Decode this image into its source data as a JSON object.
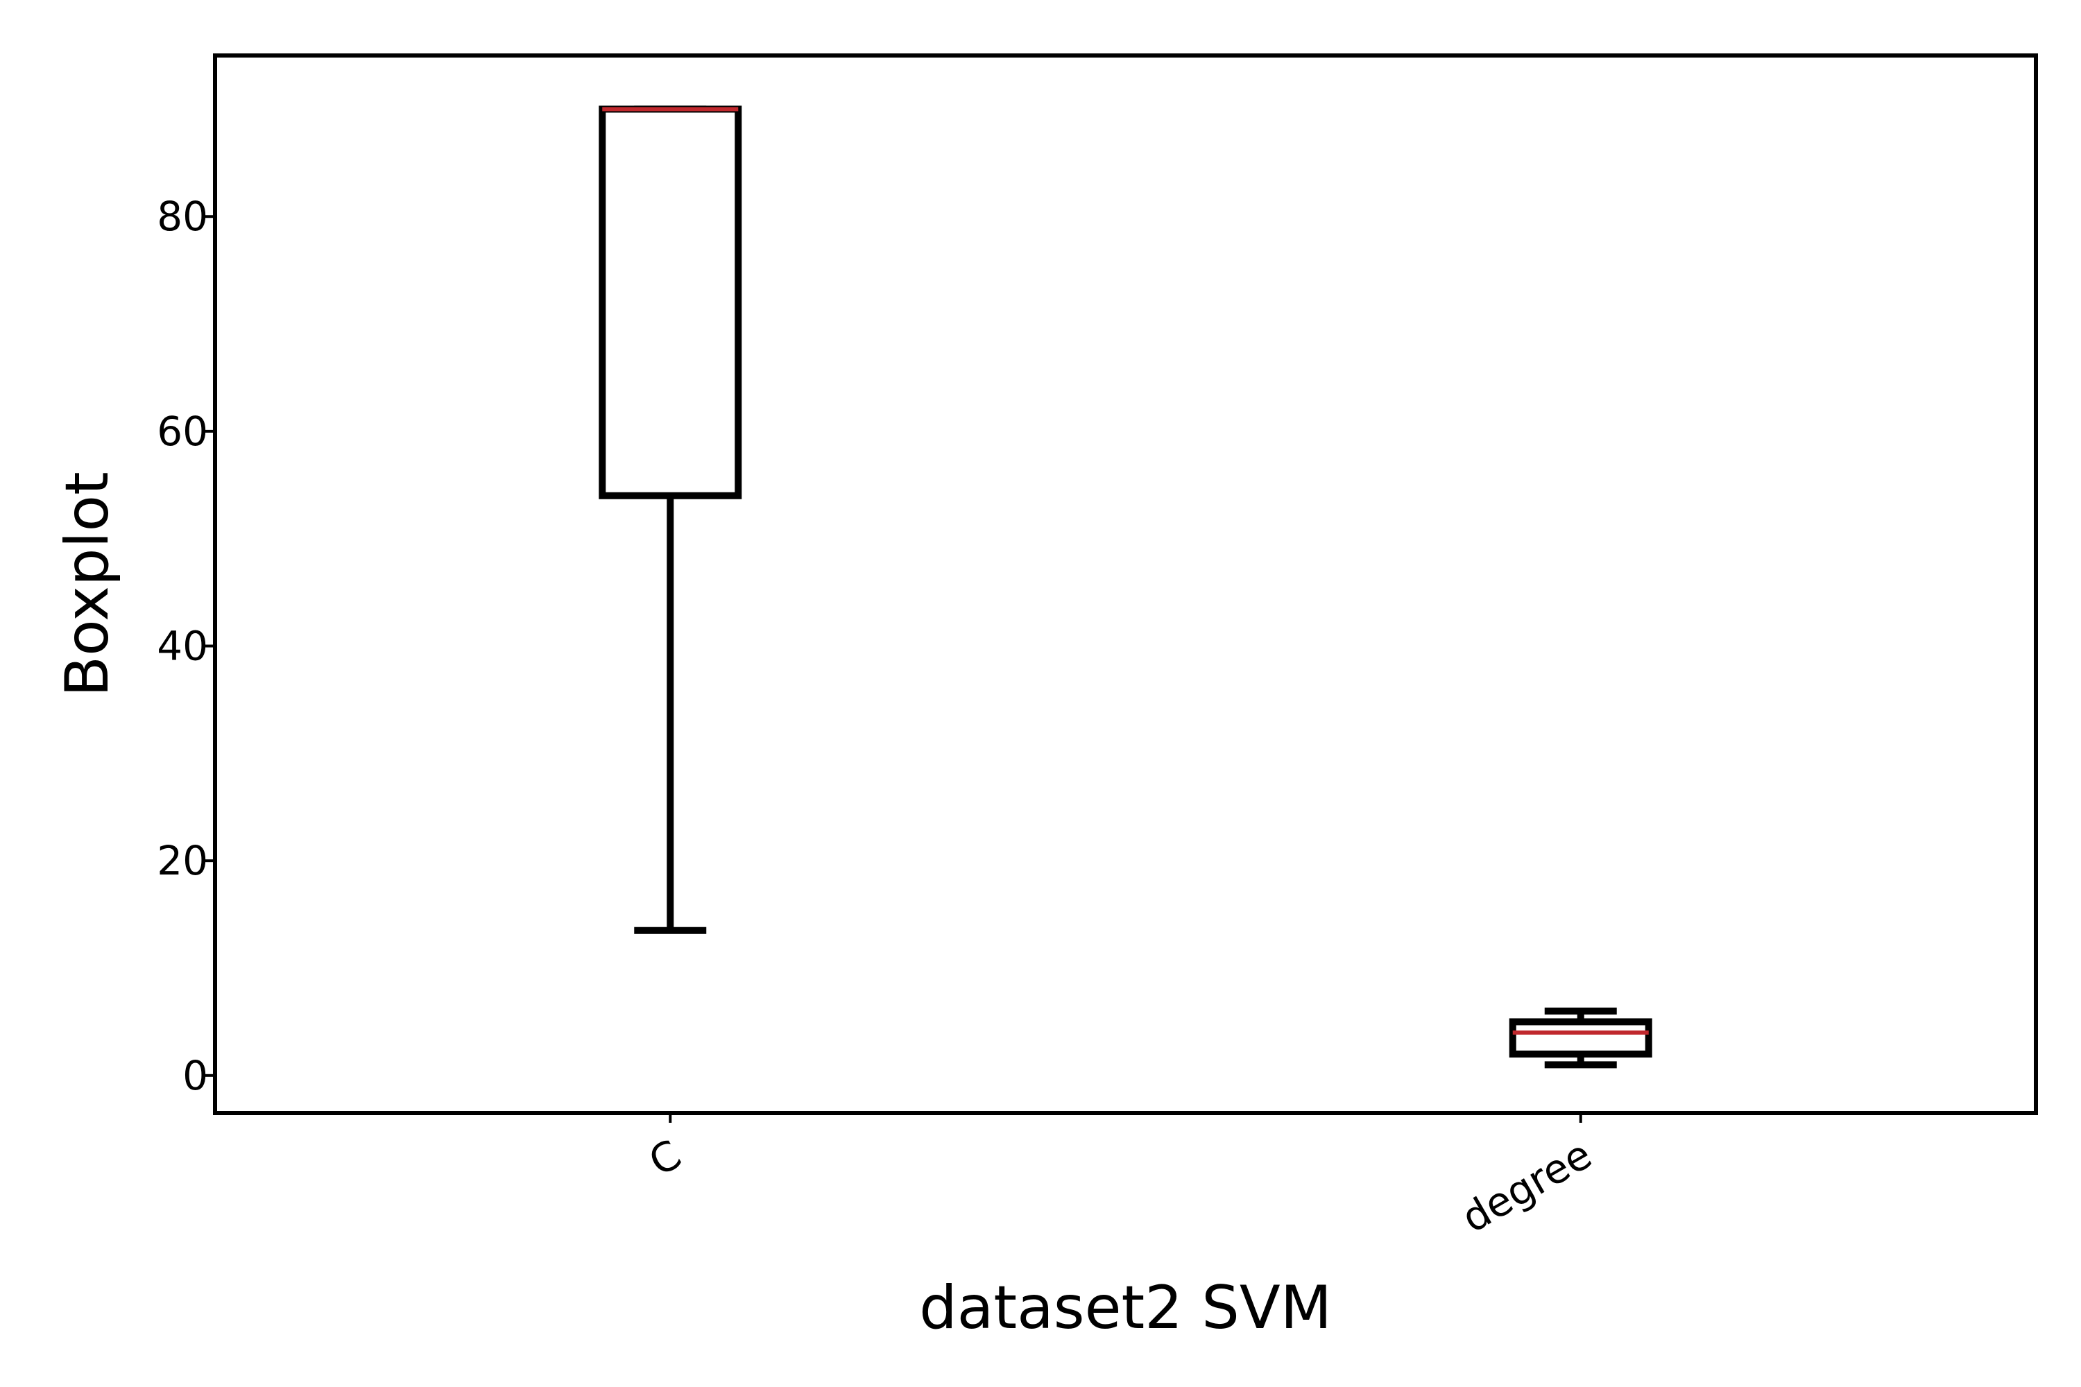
{
  "chart_data": {
    "type": "boxplot",
    "title": "",
    "xlabel": "dataset2 SVM",
    "ylabel": "Boxplot",
    "ylim": [
      -3.5,
      95
    ],
    "yticks": [
      0,
      20,
      40,
      60,
      80
    ],
    "grid": false,
    "categories": [
      "C",
      "degree"
    ],
    "boxes": [
      {
        "label": "C",
        "whisker_low": 13.5,
        "q1": 54,
        "median": 90,
        "q3": 90,
        "whisker_high": 90
      },
      {
        "label": "degree",
        "whisker_low": 1,
        "q1": 2,
        "median": 4,
        "q3": 5,
        "whisker_high": 6
      }
    ],
    "colors": {
      "box": "#000000",
      "median": "#c0282d",
      "axes": "#000000"
    }
  }
}
